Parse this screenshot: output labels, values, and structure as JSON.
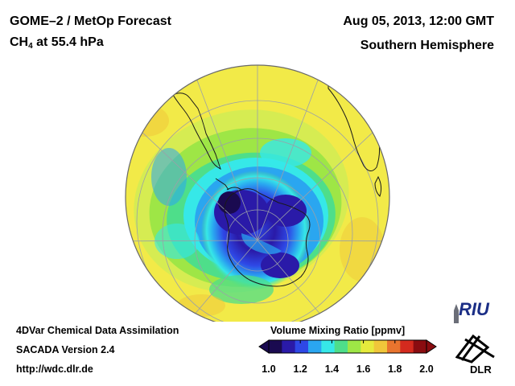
{
  "header": {
    "title": "GOME–2 / MetOp Forecast",
    "species_main": "CH",
    "species_sub": "4",
    "species_rest": " at 55.4 hPa",
    "date": "Aug 05, 2013, 12:00 GMT",
    "region": "Southern Hemisphere"
  },
  "footer": {
    "line1": "4DVar Chemical Data Assimilation",
    "line2": "SACADA Version 2.4",
    "line3": "http://wdc.dlr.de"
  },
  "colorbar": {
    "title": "Volume Mixing Ratio [ppmv]",
    "ticks": [
      "1.0",
      "1.2",
      "1.4",
      "1.6",
      "1.8",
      "2.0"
    ],
    "colors": [
      "#1a0a50",
      "#2a1aa8",
      "#2e48e6",
      "#2aa6f0",
      "#36e8e8",
      "#4ede8a",
      "#9ee646",
      "#e6ea3c",
      "#f0c63a",
      "#e8742e",
      "#d42a1e",
      "#8a0c10"
    ]
  },
  "logos": {
    "riu": "RIU",
    "dlr": "DLR"
  },
  "map": {
    "projection": "orthographic-south-polar",
    "background_level_ppmv": 1.62,
    "vortex_min_ppmv": 1.05
  }
}
